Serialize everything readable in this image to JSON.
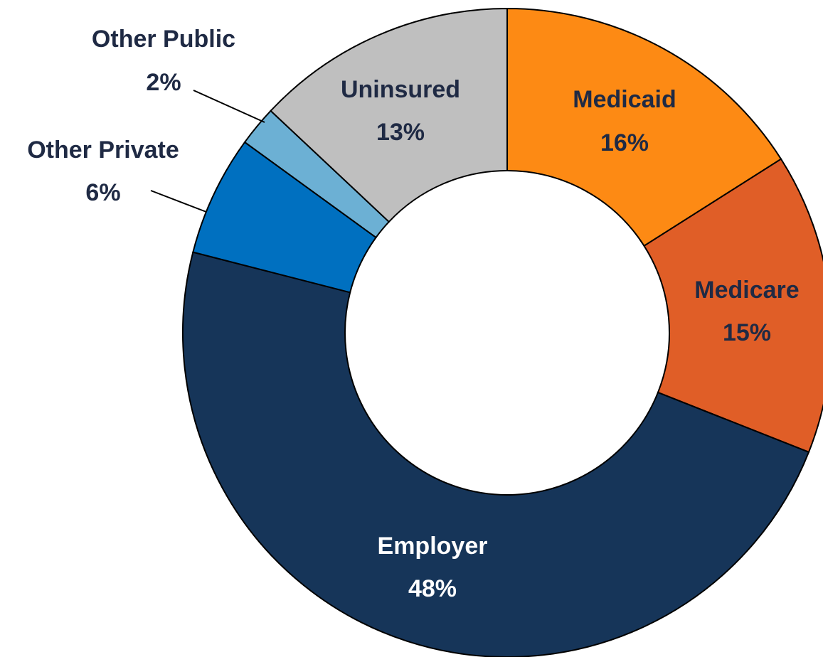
{
  "chart_data": {
    "type": "donut",
    "categories": [
      "Medicaid",
      "Medicare",
      "Employer",
      "Other Private",
      "Other Public",
      "Uninsured"
    ],
    "values": [
      16,
      15,
      48,
      6,
      2,
      13
    ],
    "value_labels": [
      "16%",
      "15%",
      "48%",
      "6%",
      "2%",
      "13%"
    ],
    "colors": [
      "#fd8a14",
      "#e05e27",
      "#163559",
      "#0070c0",
      "#6cb0d4",
      "#bfbfbf"
    ]
  }
}
